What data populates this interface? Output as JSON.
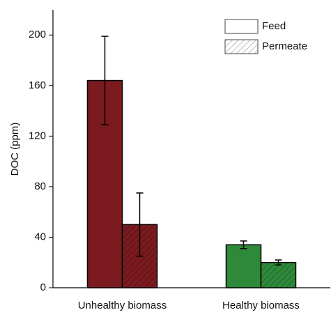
{
  "chart_data": {
    "type": "bar",
    "y_label": "DOC (ppm)",
    "categories": [
      "Unhealthy biomass",
      "Healthy biomass"
    ],
    "category_colors": [
      "#7b1a1f",
      "#2e8a3a"
    ],
    "series": [
      {
        "name": "Feed",
        "color": "#ffffff",
        "hatch": false,
        "values": [
          164,
          34
        ],
        "errors": [
          35,
          3
        ]
      },
      {
        "name": "Permeate",
        "color": "#ffffff",
        "hatch": true,
        "values": [
          50,
          20
        ],
        "errors": [
          25,
          2
        ]
      }
    ],
    "ylim": [
      0,
      220
    ],
    "yticks": [
      0,
      40,
      80,
      120,
      160,
      200
    ],
    "legend": "upper right"
  }
}
